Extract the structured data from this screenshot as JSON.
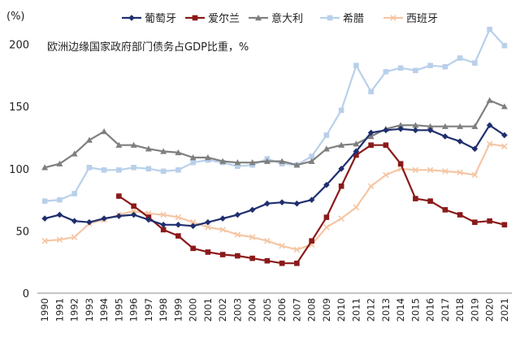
{
  "chart_data": {
    "type": "line",
    "title": "",
    "annotation": "欧洲边缘国家政府部门债务占GDP比重，%",
    "y_unit": "(%)",
    "xlabel": "",
    "ylabel": "",
    "ylim": [
      0,
      220
    ],
    "yticks": [
      0,
      50,
      100,
      150,
      200
    ],
    "x": [
      1990,
      1991,
      1992,
      1993,
      1994,
      1995,
      1996,
      1997,
      1998,
      1999,
      2000,
      2001,
      2002,
      2003,
      2004,
      2005,
      2006,
      2007,
      2008,
      2009,
      2010,
      2011,
      2012,
      2013,
      2014,
      2015,
      2016,
      2017,
      2018,
      2019,
      2020,
      2021
    ],
    "grid": false,
    "legend_position": "top",
    "series": [
      {
        "name": "葡萄牙",
        "color": "#1f2f6e",
        "marker": "diamond",
        "values": [
          60,
          63,
          58,
          57,
          60,
          62,
          63,
          59,
          55,
          55,
          54,
          57,
          60,
          63,
          67,
          72,
          73,
          72,
          75,
          87,
          100,
          114,
          129,
          131,
          132,
          131,
          131,
          126,
          122,
          116,
          135,
          127
        ]
      },
      {
        "name": "爱尔兰",
        "color": "#8b1a1a",
        "marker": "square",
        "values": [
          null,
          null,
          null,
          null,
          null,
          78,
          70,
          61,
          51,
          46,
          36,
          33,
          31,
          30,
          28,
          26,
          24,
          24,
          42,
          61,
          86,
          111,
          119,
          119,
          104,
          76,
          74,
          67,
          63,
          57,
          58,
          55
        ]
      },
      {
        "name": "意大利",
        "color": "#7f7f7f",
        "marker": "triangle",
        "values": [
          101,
          104,
          112,
          123,
          130,
          119,
          119,
          116,
          114,
          113,
          109,
          109,
          106,
          105,
          105,
          106,
          106,
          103,
          106,
          116,
          119,
          120,
          126,
          132,
          135,
          135,
          134,
          134,
          134,
          134,
          155,
          150
        ]
      },
      {
        "name": "希腊",
        "color": "#b9d0ea",
        "marker": "square",
        "values": [
          74,
          75,
          80,
          101,
          99,
          99,
          101,
          100,
          98,
          99,
          105,
          107,
          105,
          102,
          103,
          108,
          104,
          103,
          110,
          127,
          147,
          183,
          162,
          178,
          181,
          179,
          183,
          182,
          189,
          185,
          212,
          199
        ]
      },
      {
        "name": "西班牙",
        "color": "#f5c6a4",
        "marker": "x",
        "values": [
          42,
          43,
          45,
          56,
          59,
          63,
          66,
          64,
          63,
          61,
          57,
          53,
          51,
          47,
          45,
          42,
          38,
          35,
          39,
          53,
          60,
          69,
          86,
          95,
          100,
          99,
          99,
          98,
          97,
          95,
          120,
          118
        ]
      }
    ]
  }
}
